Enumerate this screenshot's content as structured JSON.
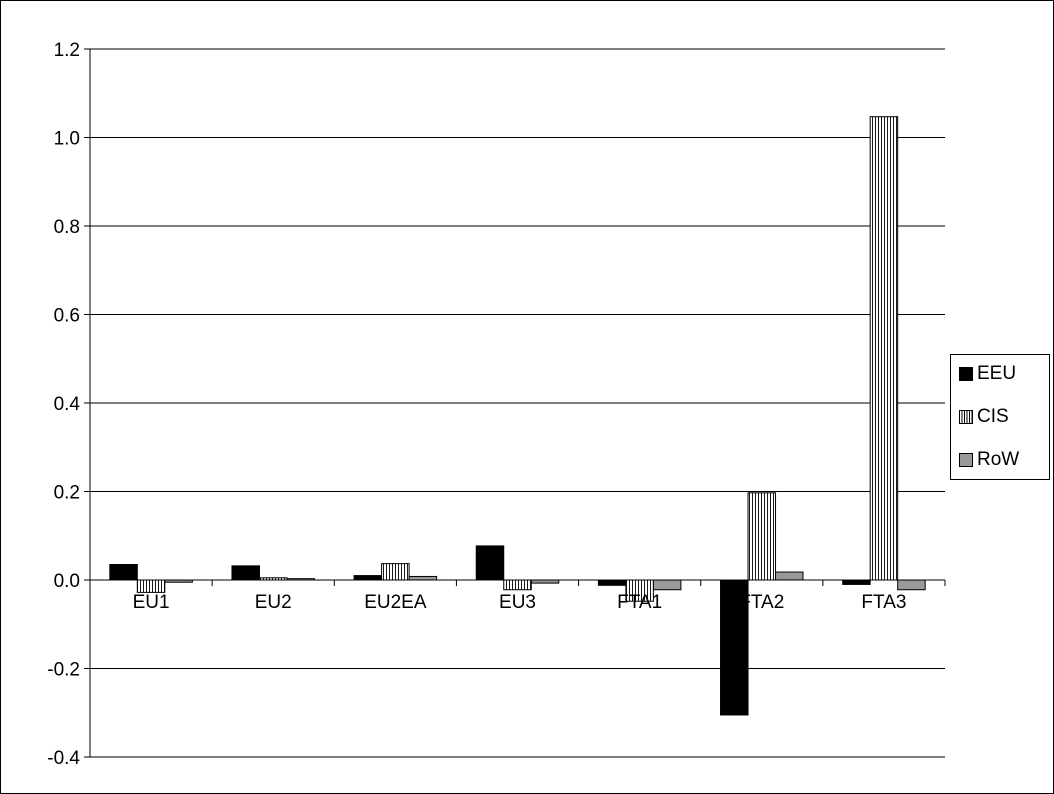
{
  "chart_data": {
    "type": "bar",
    "title": "",
    "xlabel": "",
    "ylabel": "",
    "categories": [
      "EU1",
      "EU2",
      "EU2EA",
      "EU3",
      "FTA1",
      "FTA2",
      "FTA3"
    ],
    "series": [
      {
        "name": "EEU",
        "values": [
          0.035,
          0.032,
          0.01,
          0.077,
          -0.012,
          -0.305,
          -0.01
        ],
        "color": "#000000",
        "pattern": "solid"
      },
      {
        "name": "CIS",
        "values": [
          -0.028,
          0.005,
          0.037,
          -0.022,
          -0.048,
          0.197,
          1.047
        ],
        "color": "#ffffff",
        "pattern": "vertical-lines"
      },
      {
        "name": "RoW",
        "values": [
          -0.005,
          0.003,
          0.008,
          -0.007,
          -0.022,
          0.018,
          -0.022
        ],
        "color": "#999999",
        "pattern": "solid"
      }
    ],
    "ylim": [
      -0.4,
      1.2
    ],
    "yticks": [
      "1.2",
      "1.0",
      "0.8",
      "0.6",
      "0.4",
      "0.2",
      "0.0",
      "-0.2",
      "-0.4"
    ],
    "ytick_values": [
      1.2,
      1.0,
      0.8,
      0.6,
      0.4,
      0.2,
      0.0,
      -0.2,
      -0.4
    ],
    "grid": true,
    "legend_position": "right"
  }
}
